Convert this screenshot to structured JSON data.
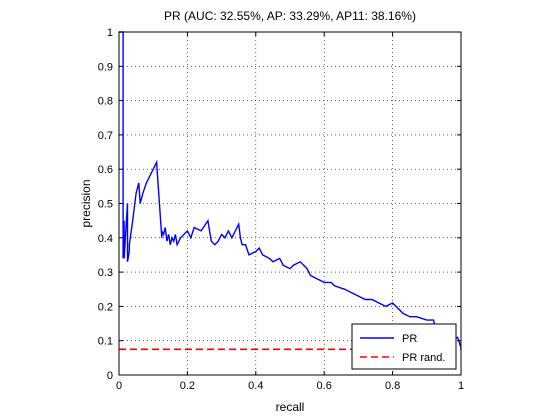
{
  "chart_data": {
    "type": "line",
    "title": "PR (AUC: 32.55%, AP: 33.29%, AP11: 38.16%)",
    "xlabel": "recall",
    "ylabel": "precision",
    "xlim": [
      0,
      1
    ],
    "ylim": [
      0,
      1
    ],
    "x_ticks": [
      0,
      0.2,
      0.4,
      0.6,
      0.8,
      1
    ],
    "x_tick_labels": [
      "0",
      "0.2",
      "0.4",
      "0.6",
      "0.8",
      "1"
    ],
    "y_ticks": [
      0,
      0.1,
      0.2,
      0.3,
      0.4,
      0.5,
      0.6,
      0.7,
      0.8,
      0.9,
      1
    ],
    "y_tick_labels": [
      "0",
      "0.1",
      "0.2",
      "0.3",
      "0.4",
      "0.5",
      "0.6",
      "0.7",
      "0.8",
      "0.9",
      "1"
    ],
    "grid": true,
    "legend_position": "bottom-right",
    "series": [
      {
        "name": "PR",
        "color": "#0000ff",
        "style": "solid",
        "x": [
          0.0,
          0.012,
          0.012,
          0.015,
          0.015,
          0.025,
          0.025,
          0.03,
          0.03,
          0.04,
          0.05,
          0.058,
          0.062,
          0.07,
          0.08,
          0.09,
          0.1,
          0.11,
          0.125,
          0.125,
          0.13,
          0.135,
          0.14,
          0.145,
          0.15,
          0.155,
          0.16,
          0.165,
          0.17,
          0.18,
          0.19,
          0.2,
          0.21,
          0.22,
          0.24,
          0.26,
          0.27,
          0.28,
          0.29,
          0.3,
          0.31,
          0.32,
          0.33,
          0.35,
          0.355,
          0.36,
          0.37,
          0.38,
          0.4,
          0.41,
          0.42,
          0.44,
          0.45,
          0.47,
          0.48,
          0.5,
          0.51,
          0.53,
          0.55,
          0.56,
          0.58,
          0.6,
          0.62,
          0.63,
          0.66,
          0.68,
          0.7,
          0.72,
          0.74,
          0.76,
          0.78,
          0.8,
          0.82,
          0.83,
          0.85,
          0.87,
          0.9,
          0.92,
          0.93,
          0.95,
          0.97,
          0.99,
          1.0
        ],
        "y": [
          1.0,
          1.0,
          0.34,
          0.45,
          0.34,
          0.5,
          0.33,
          0.36,
          0.38,
          0.45,
          0.53,
          0.56,
          0.5,
          0.53,
          0.56,
          0.58,
          0.6,
          0.62,
          0.4,
          0.42,
          0.41,
          0.43,
          0.39,
          0.41,
          0.38,
          0.4,
          0.39,
          0.41,
          0.38,
          0.4,
          0.41,
          0.42,
          0.4,
          0.43,
          0.42,
          0.45,
          0.39,
          0.38,
          0.39,
          0.41,
          0.4,
          0.42,
          0.4,
          0.44,
          0.4,
          0.38,
          0.38,
          0.35,
          0.36,
          0.37,
          0.35,
          0.34,
          0.33,
          0.34,
          0.32,
          0.31,
          0.32,
          0.33,
          0.31,
          0.29,
          0.28,
          0.27,
          0.27,
          0.26,
          0.25,
          0.24,
          0.23,
          0.22,
          0.22,
          0.21,
          0.2,
          0.21,
          0.19,
          0.18,
          0.17,
          0.17,
          0.16,
          0.16,
          0.11,
          0.1,
          0.1,
          0.11,
          0.08
        ]
      },
      {
        "name": "PR rand.",
        "color": "#ff0000",
        "style": "dashed",
        "x": [
          0,
          1
        ],
        "y": [
          0.075,
          0.075
        ]
      }
    ]
  }
}
